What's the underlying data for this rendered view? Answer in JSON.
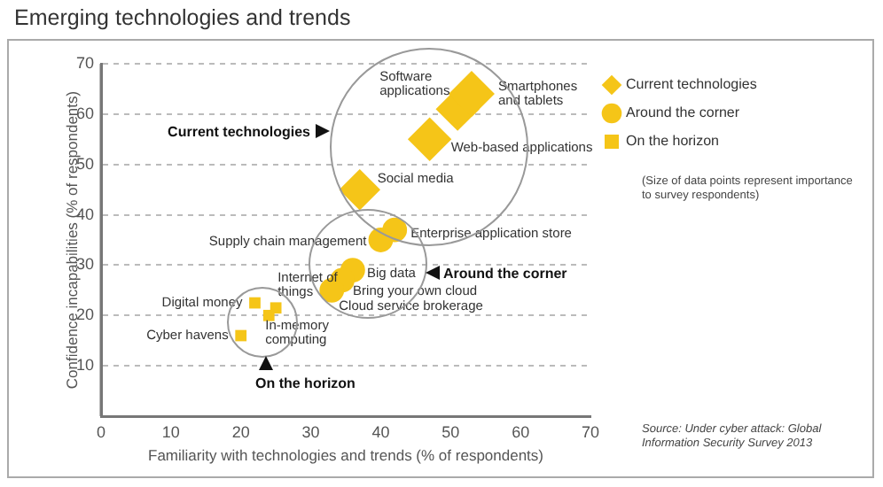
{
  "chart_data": {
    "type": "bubble",
    "title": "Emerging technologies and trends",
    "xlabel": "Familiarity with technologies and trends (% of respondents)",
    "ylabel": "Confidence incapabilities (% of respondents)",
    "xlim": [
      0,
      70
    ],
    "xticks": [
      0,
      10,
      20,
      30,
      40,
      50,
      60,
      70
    ],
    "ylim": [
      0,
      70
    ],
    "yticks": [
      10,
      20,
      30,
      40,
      50,
      60,
      70
    ],
    "grid": "y",
    "legend": "right",
    "series": [
      {
        "name": "Current technologies",
        "color": "#f5c518",
        "marker": "diamond",
        "x": [
          51,
          53,
          47,
          37
        ],
        "values": [
          61,
          64,
          55,
          45
        ],
        "sizes": [
          0.9,
          1,
          0.9,
          0.8
        ]
      },
      {
        "name": "Around the corner",
        "color": "#f5c518",
        "marker": "circle",
        "x": [
          42,
          40,
          36,
          34.5,
          33
        ],
        "values": [
          37,
          35,
          29,
          27,
          25
        ],
        "sizes": [
          0.45,
          0.45,
          0.45,
          0.45,
          0.45
        ]
      },
      {
        "name": "On the horizon",
        "color": "#f5c518",
        "marker": "square",
        "x": [
          22,
          25,
          24,
          20
        ],
        "values": [
          22.5,
          21.5,
          20,
          16
        ],
        "sizes": [
          0.12,
          0.12,
          0.12,
          0.12
        ]
      }
    ],
    "annotations": [
      {
        "text": "Software applications",
        "x": 51,
        "y": 61
      },
      {
        "text": "Smartphones and tablets",
        "x": 53,
        "y": 64
      },
      {
        "text": "Web-based applications",
        "x": 47,
        "y": 55
      },
      {
        "text": "Social media",
        "x": 37,
        "y": 45
      },
      {
        "text": "Enterprise application store",
        "x": 42,
        "y": 37
      },
      {
        "text": "Supply chain management",
        "x": 40,
        "y": 35
      },
      {
        "text": "Big data",
        "x": 36,
        "y": 29
      },
      {
        "text": "Bring your own cloud",
        "x": 34.5,
        "y": 27
      },
      {
        "text": "Cloud service brokerage",
        "x": 33,
        "y": 25
      },
      {
        "text": "Digital money",
        "x": 22,
        "y": 22.5
      },
      {
        "text": "Internet of things",
        "x": 25,
        "y": 21.5
      },
      {
        "text": "In-memory computing",
        "x": 24,
        "y": 20
      },
      {
        "text": "Cyber havens",
        "x": 20,
        "y": 16
      },
      "Current technologies",
      "Around the corner",
      "On the horizon",
      "(Size of data points represent importance to survey respondents)",
      "Source: Under cyber attack: Global Information Security Survey 2013"
    ]
  }
}
